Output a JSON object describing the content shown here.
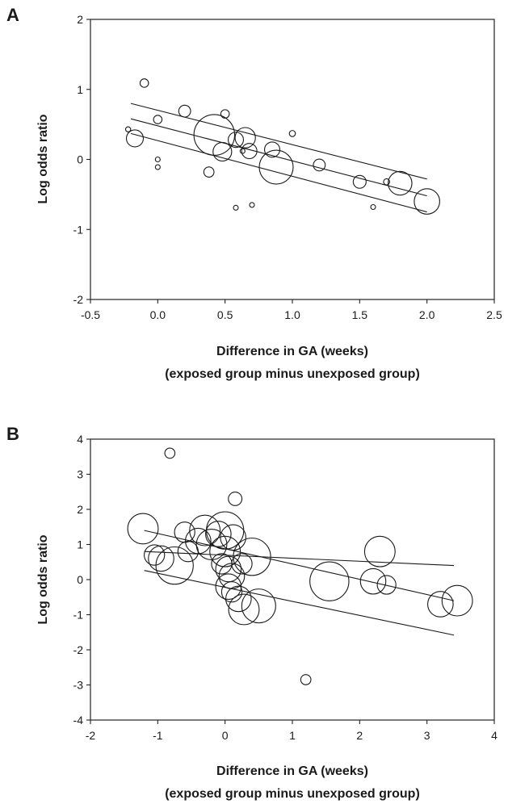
{
  "chart_data": [
    {
      "panel": "A",
      "type": "scatter",
      "ylabel": "Log odds ratio",
      "xlabel_lines": [
        "Difference in GA  (weeks)",
        "(exposed group minus unexposed group)"
      ],
      "xlim": [
        -0.5,
        2.5
      ],
      "ylim": [
        -2,
        2
      ],
      "x_ticks": [
        -0.5,
        0.0,
        0.5,
        1.0,
        1.5,
        2.0,
        2.5
      ],
      "x_tick_labels": [
        "-0.5",
        "0.0",
        "0.5",
        "1.0",
        "1.5",
        "2.0",
        "2.5"
      ],
      "y_ticks": [
        -2,
        -1,
        0,
        1,
        2
      ],
      "y_tick_labels": [
        "-2",
        "-1",
        "0",
        "1",
        "2"
      ],
      "points": [
        {
          "x": -0.22,
          "y": 0.43,
          "size": 0.15
        },
        {
          "x": -0.17,
          "y": 0.3,
          "size": 0.5
        },
        {
          "x": -0.1,
          "y": 1.09,
          "size": 0.25
        },
        {
          "x": 0.0,
          "y": 0.57,
          "size": 0.25
        },
        {
          "x": 0.0,
          "y": 0.0,
          "size": 0.1
        },
        {
          "x": 0.0,
          "y": -0.11,
          "size": 0.12
        },
        {
          "x": 0.2,
          "y": 0.69,
          "size": 0.35
        },
        {
          "x": 0.38,
          "y": -0.18,
          "size": 0.3
        },
        {
          "x": 0.42,
          "y": 0.35,
          "size": 1.2
        },
        {
          "x": 0.48,
          "y": 0.11,
          "size": 0.55
        },
        {
          "x": 0.5,
          "y": 0.65,
          "size": 0.25
        },
        {
          "x": 0.58,
          "y": -0.69,
          "size": 0.1
        },
        {
          "x": 0.58,
          "y": 0.28,
          "size": 0.45
        },
        {
          "x": 0.63,
          "y": 0.12,
          "size": 0.12
        },
        {
          "x": 0.65,
          "y": 0.31,
          "size": 0.6
        },
        {
          "x": 0.68,
          "y": 0.12,
          "size": 0.45
        },
        {
          "x": 0.7,
          "y": -0.65,
          "size": 0.1
        },
        {
          "x": 0.85,
          "y": 0.14,
          "size": 0.45
        },
        {
          "x": 0.88,
          "y": -0.11,
          "size": 1.0
        },
        {
          "x": 1.0,
          "y": 0.37,
          "size": 0.18
        },
        {
          "x": 1.2,
          "y": -0.08,
          "size": 0.35
        },
        {
          "x": 1.5,
          "y": -0.32,
          "size": 0.38
        },
        {
          "x": 1.6,
          "y": -0.68,
          "size": 0.08
        },
        {
          "x": 1.7,
          "y": -0.32,
          "size": 0.18
        },
        {
          "x": 1.8,
          "y": -0.34,
          "size": 0.7
        },
        {
          "x": 2.0,
          "y": -0.6,
          "size": 0.75
        }
      ],
      "lines": [
        {
          "x": [
            -0.2,
            2.0
          ],
          "y": [
            0.8,
            -0.28
          ]
        },
        {
          "x": [
            -0.2,
            2.0
          ],
          "y": [
            0.58,
            -0.52
          ]
        },
        {
          "x": [
            -0.2,
            2.0
          ],
          "y": [
            0.37,
            -0.75
          ]
        }
      ]
    },
    {
      "panel": "B",
      "type": "scatter",
      "ylabel": "Log odds ratio",
      "xlabel_lines": [
        "Difference in GA  (weeks)",
        "(exposed group minus unexposed group)"
      ],
      "xlim": [
        -2,
        4
      ],
      "ylim": [
        -4,
        4
      ],
      "x_ticks": [
        -2,
        -1,
        0,
        1,
        2,
        3,
        4
      ],
      "x_tick_labels": [
        "-2",
        "-1",
        "0",
        "1",
        "2",
        "3",
        "4"
      ],
      "y_ticks": [
        -4,
        -3,
        -2,
        -1,
        0,
        1,
        2,
        3,
        4
      ],
      "y_tick_labels": [
        "-4",
        "-3",
        "-2",
        "-1",
        "0",
        "1",
        "2",
        "3",
        "4"
      ],
      "points": [
        {
          "x": -1.22,
          "y": 1.45,
          "size": 0.9
        },
        {
          "x": -1.05,
          "y": 0.7,
          "size": 0.6
        },
        {
          "x": -0.95,
          "y": 0.6,
          "size": 0.75
        },
        {
          "x": -0.82,
          "y": 3.6,
          "size": 0.3
        },
        {
          "x": -0.75,
          "y": 0.4,
          "size": 1.1
        },
        {
          "x": -0.6,
          "y": 1.35,
          "size": 0.6
        },
        {
          "x": -0.55,
          "y": 0.8,
          "size": 0.6
        },
        {
          "x": -0.4,
          "y": 1.1,
          "size": 0.75
        },
        {
          "x": -0.3,
          "y": 1.4,
          "size": 0.9
        },
        {
          "x": -0.2,
          "y": 1.0,
          "size": 0.9
        },
        {
          "x": -0.1,
          "y": 1.3,
          "size": 0.75
        },
        {
          "x": -0.05,
          "y": 0.45,
          "size": 0.6
        },
        {
          "x": 0.0,
          "y": 1.4,
          "size": 1.1
        },
        {
          "x": 0.0,
          "y": 0.8,
          "size": 0.9
        },
        {
          "x": 0.05,
          "y": 0.3,
          "size": 0.75
        },
        {
          "x": 0.05,
          "y": -0.2,
          "size": 0.75
        },
        {
          "x": 0.1,
          "y": -0.35,
          "size": 0.6
        },
        {
          "x": 0.1,
          "y": 0.1,
          "size": 0.75
        },
        {
          "x": 0.12,
          "y": 1.2,
          "size": 0.75
        },
        {
          "x": 0.15,
          "y": 2.3,
          "size": 0.4
        },
        {
          "x": 0.2,
          "y": -0.55,
          "size": 0.75
        },
        {
          "x": 0.25,
          "y": 0.45,
          "size": 0.6
        },
        {
          "x": 0.28,
          "y": -0.85,
          "size": 0.9
        },
        {
          "x": 0.4,
          "y": 0.65,
          "size": 1.1
        },
        {
          "x": 0.5,
          "y": -0.75,
          "size": 1.0
        },
        {
          "x": 1.2,
          "y": -2.85,
          "size": 0.3
        },
        {
          "x": 1.55,
          "y": -0.05,
          "size": 1.15
        },
        {
          "x": 2.2,
          "y": -0.05,
          "size": 0.75
        },
        {
          "x": 2.3,
          "y": 0.8,
          "size": 0.9
        },
        {
          "x": 2.4,
          "y": -0.15,
          "size": 0.55
        },
        {
          "x": 3.2,
          "y": -0.7,
          "size": 0.75
        },
        {
          "x": 3.45,
          "y": -0.6,
          "size": 0.9
        }
      ],
      "lines": [
        {
          "x": [
            -1.2,
            3.4
          ],
          "y": [
            0.26,
            -1.58
          ]
        },
        {
          "x": [
            -1.2,
            3.4
          ],
          "y": [
            1.4,
            -0.6
          ]
        },
        {
          "x": [
            -1.2,
            3.4
          ],
          "y": [
            0.8,
            0.4
          ]
        }
      ]
    }
  ]
}
